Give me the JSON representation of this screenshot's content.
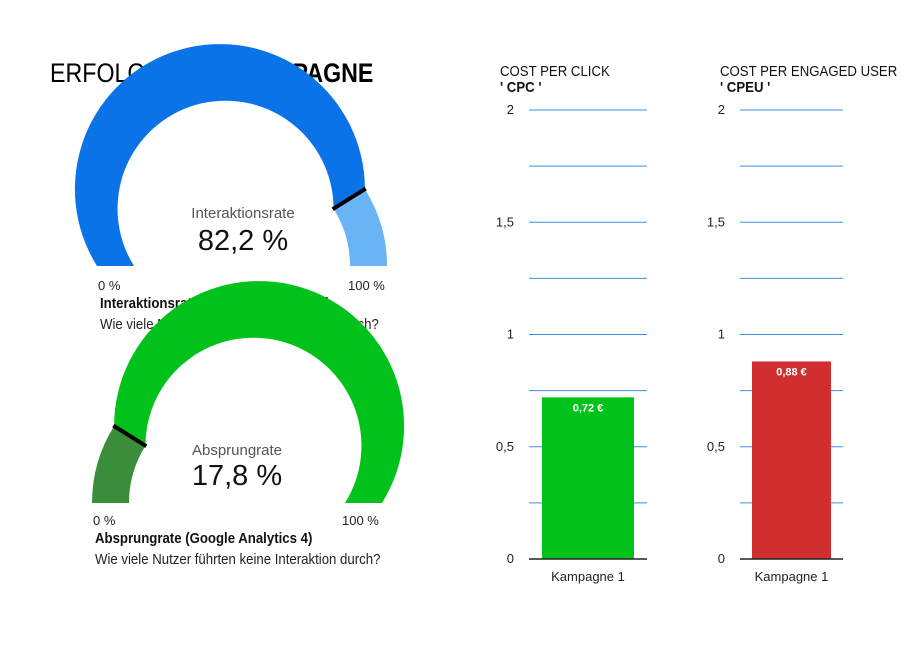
{
  "page": {
    "title_light": "ERFOLGREICHE ",
    "title_bold": "KAMPAGNE"
  },
  "chart_data": [
    {
      "type": "gauge",
      "label": "Interaktionsrate",
      "value": 82.2,
      "value_text": "82,2 %",
      "min": 0,
      "max": 100,
      "min_label": "0 %",
      "max_label": "100 %",
      "title": "Interaktionsrate (Google Analytics 4)",
      "subtitle": "Wie viele Nutzer führten eine Interaktion durch?",
      "colors": {
        "fill": "#0a73e8",
        "rest": "#6ab4f5",
        "marker": "#000000"
      }
    },
    {
      "type": "gauge",
      "label": "Absprungrate",
      "value": 17.8,
      "value_text": "17,8 %",
      "min": 0,
      "max": 100,
      "min_label": "0 %",
      "max_label": "100 %",
      "title": "Absprungrate (Google Analytics 4)",
      "subtitle": "Wie viele Nutzer führten keine Interaktion durch?",
      "colors": {
        "fill": "#3a8e3a",
        "rest": "#00c21a",
        "marker": "#000000"
      }
    },
    {
      "type": "bar",
      "title": "COST PER CLICK",
      "subtitle": "' CPC '",
      "categories": [
        "Kampagne 1"
      ],
      "values": [
        0.72
      ],
      "value_labels": [
        "0,72 €"
      ],
      "ylim": [
        0,
        2
      ],
      "yticks": [
        0,
        0.5,
        1,
        1.5,
        2
      ],
      "ytick_labels": [
        "0",
        "0,5",
        "1",
        "1,5",
        "2"
      ],
      "grid": true,
      "colors": {
        "bar": "#00c21a",
        "grid": "#3b8fe0"
      }
    },
    {
      "type": "bar",
      "title": "COST PER ENGAGED USER",
      "subtitle": "' CPEU '",
      "categories": [
        "Kampagne 1"
      ],
      "values": [
        0.88
      ],
      "value_labels": [
        "0,88 €"
      ],
      "ylim": [
        0,
        2
      ],
      "yticks": [
        0,
        0.5,
        1,
        1.5,
        2
      ],
      "ytick_labels": [
        "0",
        "0,5",
        "1",
        "1,5",
        "2"
      ],
      "grid": true,
      "colors": {
        "bar": "#d12f2f",
        "grid": "#3b8fe0"
      }
    }
  ]
}
